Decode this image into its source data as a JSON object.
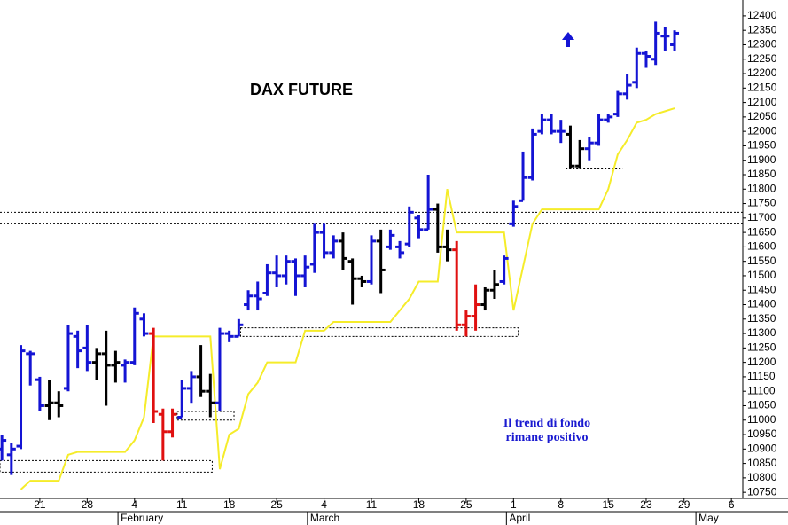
{
  "chart_data": {
    "type": "ohlc",
    "title": "DAX FUTURE",
    "annotations": [
      "Il trend di fondo",
      "rimane positivo"
    ],
    "x": [
      0,
      1,
      2,
      3,
      4,
      5,
      6,
      7,
      8,
      9,
      10,
      11,
      12,
      13,
      14,
      15,
      16,
      17,
      18,
      19,
      20,
      21,
      22,
      23,
      24,
      25,
      26,
      27,
      28,
      29,
      30,
      31,
      32,
      33,
      34,
      35,
      36,
      37,
      38,
      39,
      40,
      41,
      42,
      43,
      44,
      45,
      46,
      47,
      48,
      49,
      50,
      51,
      52,
      53,
      54,
      55,
      56,
      57,
      58,
      59,
      60,
      61,
      62,
      63,
      64,
      65,
      66,
      67,
      68,
      69,
      70,
      71
    ],
    "open": [
      10900,
      10880,
      10910,
      11230,
      11140,
      11050,
      11060,
      11110,
      11290,
      11250,
      11200,
      11230,
      11190,
      11190,
      11200,
      11350,
      11300,
      11020,
      10960,
      11010,
      11110,
      11150,
      11100,
      11060,
      11300,
      11290,
      11400,
      11430,
      11440,
      11510,
      11500,
      11550,
      11500,
      11540,
      11650,
      11580,
      11620,
      11550,
      11490,
      11480,
      11620,
      11600,
      11600,
      11610,
      11700,
      11660,
      11730,
      11600,
      11590,
      11330,
      11360,
      11400,
      11450,
      11480,
      11680,
      11760,
      11840,
      12000,
      12040,
      12000,
      11990,
      11880,
      11940,
      11960,
      12040,
      12060,
      12130,
      12170,
      12270,
      12250,
      12330,
      12300
    ],
    "high": [
      10950,
      10920,
      11260,
      11240,
      11150,
      11140,
      11100,
      11330,
      11310,
      11330,
      11250,
      11310,
      11240,
      11210,
      11390,
      11370,
      11320,
      11040,
      11040,
      11140,
      11170,
      11260,
      11160,
      11320,
      11310,
      11350,
      11450,
      11480,
      11540,
      11570,
      11570,
      11560,
      11570,
      11680,
      11680,
      11640,
      11650,
      11560,
      11500,
      11640,
      11660,
      11660,
      11620,
      11740,
      11710,
      11850,
      11750,
      11660,
      11620,
      11380,
      11470,
      11460,
      11520,
      11570,
      11760,
      11930,
      12010,
      12060,
      12060,
      12040,
      12020,
      11970,
      11980,
      12060,
      12060,
      12140,
      12200,
      12290,
      12280,
      12380,
      12360,
      12350
    ],
    "low": [
      10860,
      10810,
      10900,
      11120,
      11030,
      11000,
      11010,
      11100,
      11180,
      11170,
      11140,
      11050,
      11130,
      11130,
      11190,
      11290,
      10990,
      10860,
      10940,
      11010,
      11060,
      11080,
      11010,
      11030,
      11270,
      11290,
      11380,
      11380,
      11430,
      11460,
      11470,
      11430,
      11460,
      11510,
      11560,
      11560,
      11520,
      11400,
      11460,
      11470,
      11440,
      11590,
      11560,
      11600,
      11630,
      11660,
      11580,
      11550,
      11310,
      11290,
      11310,
      11380,
      11420,
      11470,
      11670,
      11760,
      11830,
      11990,
      11990,
      11960,
      11870,
      11870,
      11900,
      11950,
      12030,
      12050,
      12110,
      12150,
      12220,
      12230,
      12280,
      12280
    ],
    "close": [
      10930,
      10900,
      11240,
      11230,
      11050,
      11060,
      11050,
      11300,
      11240,
      11200,
      11230,
      11190,
      11200,
      11200,
      11370,
      11300,
      11030,
      10960,
      11020,
      11110,
      11150,
      11100,
      11060,
      11300,
      11290,
      11330,
      11430,
      11420,
      11510,
      11500,
      11550,
      11500,
      11530,
      11650,
      11580,
      11620,
      11560,
      11490,
      11480,
      11620,
      11520,
      11640,
      11580,
      11720,
      11660,
      11730,
      11600,
      11590,
      11330,
      11360,
      11400,
      11450,
      11470,
      11560,
      11740,
      11840,
      11990,
      12040,
      12000,
      12000,
      11880,
      11940,
      11960,
      12040,
      12050,
      12130,
      12160,
      12270,
      12260,
      12340,
      12330,
      12340
    ],
    "colors": [
      "#1414d4",
      "#1414d4",
      "#1414d4",
      "#1414d4",
      "#1414d4",
      "#000000",
      "#000000",
      "#1414d4",
      "#1414d4",
      "#1414d4",
      "#000000",
      "#000000",
      "#000000",
      "#1414d4",
      "#1414d4",
      "#1414d4",
      "#e01010",
      "#e01010",
      "#e01010",
      "#1414d4",
      "#1414d4",
      "#000000",
      "#000000",
      "#1414d4",
      "#1414d4",
      "#1414d4",
      "#1414d4",
      "#1414d4",
      "#1414d4",
      "#1414d4",
      "#1414d4",
      "#1414d4",
      "#1414d4",
      "#1414d4",
      "#1414d4",
      "#1414d4",
      "#000000",
      "#000000",
      "#000000",
      "#1414d4",
      "#000000",
      "#1414d4",
      "#1414d4",
      "#1414d4",
      "#1414d4",
      "#1414d4",
      "#000000",
      "#000000",
      "#e01010",
      "#e01010",
      "#e01010",
      "#000000",
      "#000000",
      "#1414d4",
      "#1414d4",
      "#1414d4",
      "#1414d4",
      "#1414d4",
      "#1414d4",
      "#1414d4",
      "#000000",
      "#000000",
      "#1414d4",
      "#1414d4",
      "#1414d4",
      "#1414d4",
      "#1414d4",
      "#1414d4",
      "#1414d4",
      "#1414d4",
      "#1414d4",
      "#1414d4"
    ],
    "trend_line": {
      "color": "#f5ec2a",
      "values": [
        null,
        null,
        10760,
        10790,
        10790,
        10790,
        10790,
        10880,
        10890,
        10890,
        10890,
        10890,
        10890,
        10890,
        10930,
        11010,
        11290,
        11290,
        11290,
        11290,
        11290,
        11290,
        11290,
        10830,
        10950,
        10970,
        11090,
        11130,
        11200,
        11200,
        11200,
        11200,
        11310,
        11310,
        11310,
        11340,
        11340,
        11340,
        11340,
        11340,
        11340,
        11340,
        11380,
        11420,
        11480,
        11480,
        11480,
        11800,
        11650,
        11650,
        11650,
        11650,
        11650,
        11650,
        11380,
        11530,
        11680,
        11730,
        11730,
        11730,
        11730,
        11730,
        11730,
        11730,
        11800,
        11920,
        11970,
        12030,
        12040,
        12060,
        12070,
        12080
      ]
    },
    "levels": [
      11720,
      11680
    ],
    "zones": [
      {
        "x": [
          -0.2,
          22.2
        ],
        "y": [
          10820,
          10860
        ]
      },
      {
        "x": [
          18.5,
          24.5
        ],
        "y": [
          11000,
          11030
        ]
      },
      {
        "x": [
          25.2,
          54.5
        ],
        "y": [
          11290,
          11320
        ]
      }
    ],
    "marker_line": {
      "x": [
        59.5,
        65.5
      ],
      "y": 11870
    },
    "xlim": [
      -0.2,
      78.2
    ],
    "ylim": [
      10729,
      12455
    ],
    "xticks": [
      {
        "value": 4,
        "label": "21"
      },
      {
        "value": 9,
        "label": "28"
      },
      {
        "value": 14,
        "label": "4"
      },
      {
        "value": 19,
        "label": "11"
      },
      {
        "value": 24,
        "label": "18"
      },
      {
        "value": 29,
        "label": "25"
      },
      {
        "value": 34,
        "label": "4"
      },
      {
        "value": 39,
        "label": "11"
      },
      {
        "value": 44,
        "label": "18"
      },
      {
        "value": 49,
        "label": "25"
      },
      {
        "value": 54,
        "label": "1"
      },
      {
        "value": 59,
        "label": "8"
      },
      {
        "value": 64,
        "label": "15"
      },
      {
        "value": 68,
        "label": "23"
      },
      {
        "value": 72,
        "label": "29"
      },
      {
        "value": 77,
        "label": "6"
      }
    ],
    "month_ticks": [
      {
        "value": 13,
        "label": "February"
      },
      {
        "value": 33,
        "label": "March"
      },
      {
        "value": 54,
        "label": "April"
      },
      {
        "value": 74,
        "label": "May"
      }
    ],
    "yticks": [
      10750,
      10800,
      10850,
      10900,
      10950,
      11000,
      11050,
      11100,
      11150,
      11200,
      11250,
      11300,
      11350,
      11400,
      11450,
      11500,
      11550,
      11600,
      11650,
      11700,
      11750,
      11800,
      11850,
      11900,
      11950,
      12000,
      12050,
      12100,
      12150,
      12200,
      12250,
      12300,
      12350,
      12400
    ]
  }
}
